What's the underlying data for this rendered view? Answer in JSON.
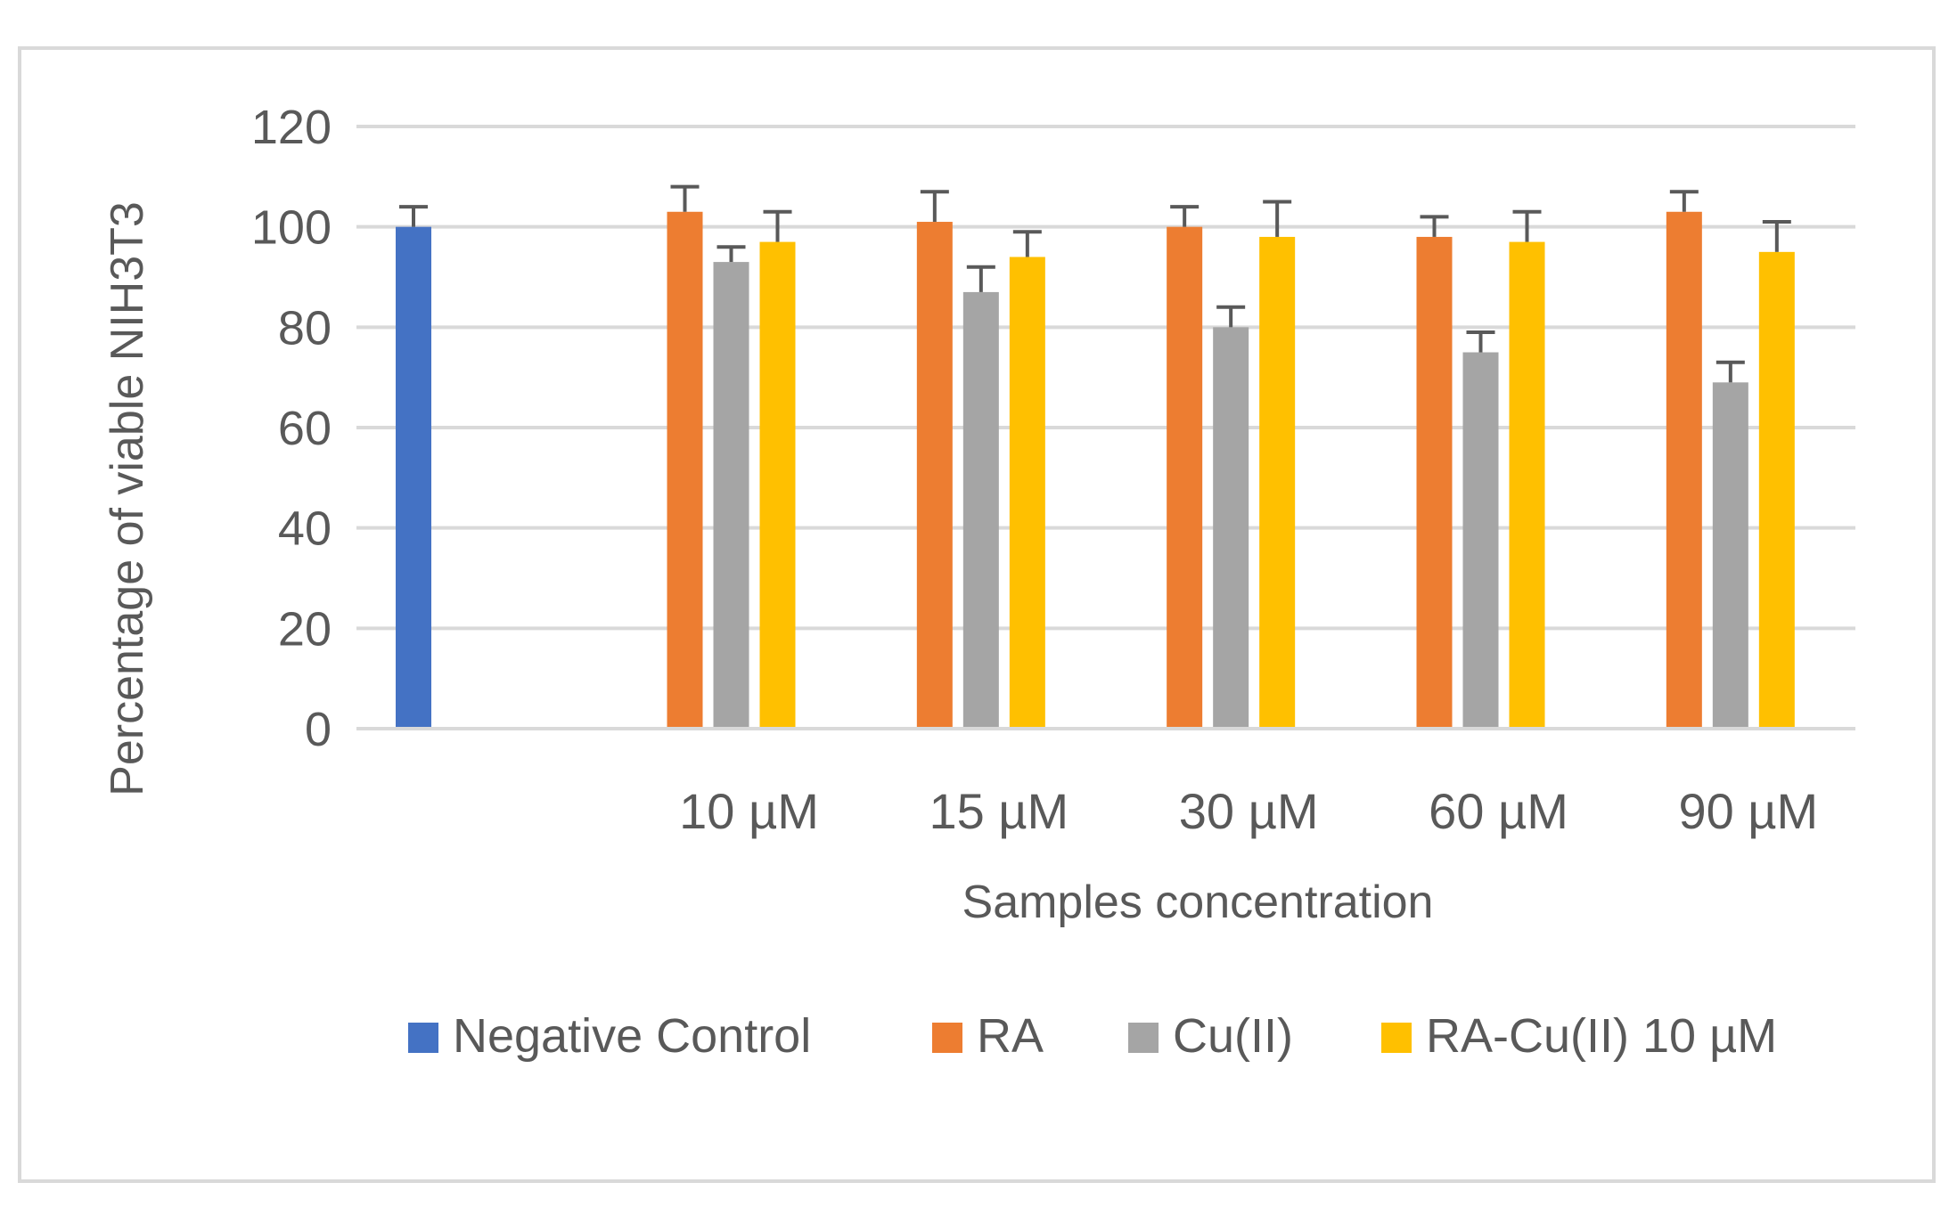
{
  "chart_data": {
    "type": "bar",
    "title": "",
    "xlabel": "Samples concentration",
    "ylabel": "Percentage of viable NIH3T3",
    "ylim": [
      0,
      120
    ],
    "yticks": [
      0,
      20,
      40,
      60,
      80,
      100,
      120
    ],
    "grid": true,
    "legend_position": "bottom",
    "categories": [
      "",
      "10 µM",
      "15 µM",
      "30 µM",
      "60 µM",
      "90 µM"
    ],
    "series": [
      {
        "name": "Negative Control",
        "color": "#4472C4",
        "values": [
          100,
          null,
          null,
          null,
          null,
          null
        ],
        "errors": [
          4,
          null,
          null,
          null,
          null,
          null
        ]
      },
      {
        "name": "RA",
        "color": "#ED7D31",
        "values": [
          null,
          103,
          101,
          100,
          98,
          103
        ],
        "errors": [
          null,
          5,
          6,
          4,
          4,
          4
        ]
      },
      {
        "name": "Cu(II)",
        "color": "#A5A5A5",
        "values": [
          null,
          93,
          87,
          80,
          75,
          69
        ],
        "errors": [
          null,
          3,
          5,
          4,
          4,
          4
        ]
      },
      {
        "name": "RA-Cu(II) 10 µM",
        "color": "#FFC000",
        "values": [
          null,
          97,
          94,
          98,
          97,
          95
        ],
        "errors": [
          null,
          6,
          5,
          7,
          6,
          6
        ]
      }
    ]
  }
}
